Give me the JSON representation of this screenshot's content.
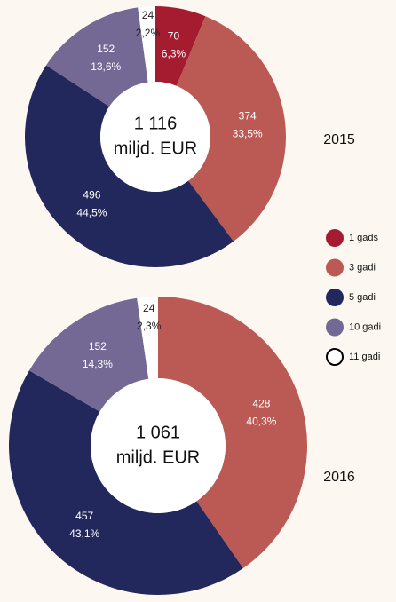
{
  "chart_data": [
    {
      "type": "pie",
      "donut": true,
      "title": "2015",
      "categories": [
        "1 gads",
        "3 gadi",
        "5 gadi",
        "10 gadi",
        "11 gadi"
      ],
      "values": [
        70,
        374,
        496,
        152,
        24
      ],
      "percent_labels": [
        "6,3%",
        "33,5%",
        "44,5%",
        "13,6%",
        "2,2%"
      ],
      "colors": [
        "#a51c30",
        "#bb5a55",
        "#23285c",
        "#736994",
        "#ffffff"
      ],
      "total": {
        "value": 1116,
        "label": "1 116"
      },
      "unit": "miljd. EUR"
    },
    {
      "type": "pie",
      "donut": true,
      "title": "2016",
      "categories": [
        "3 gadi",
        "5 gadi",
        "10 gadi",
        "11 gadi"
      ],
      "values": [
        428,
        457,
        152,
        24
      ],
      "percent_labels": [
        "40,3%",
        "43,1%",
        "14,3%",
        "2,3%"
      ],
      "colors": [
        "#bb5a55",
        "#23285c",
        "#736994",
        "#ffffff"
      ],
      "total": {
        "value": 1061,
        "label": "1 061"
      },
      "unit": "miljd. EUR"
    }
  ]
}
